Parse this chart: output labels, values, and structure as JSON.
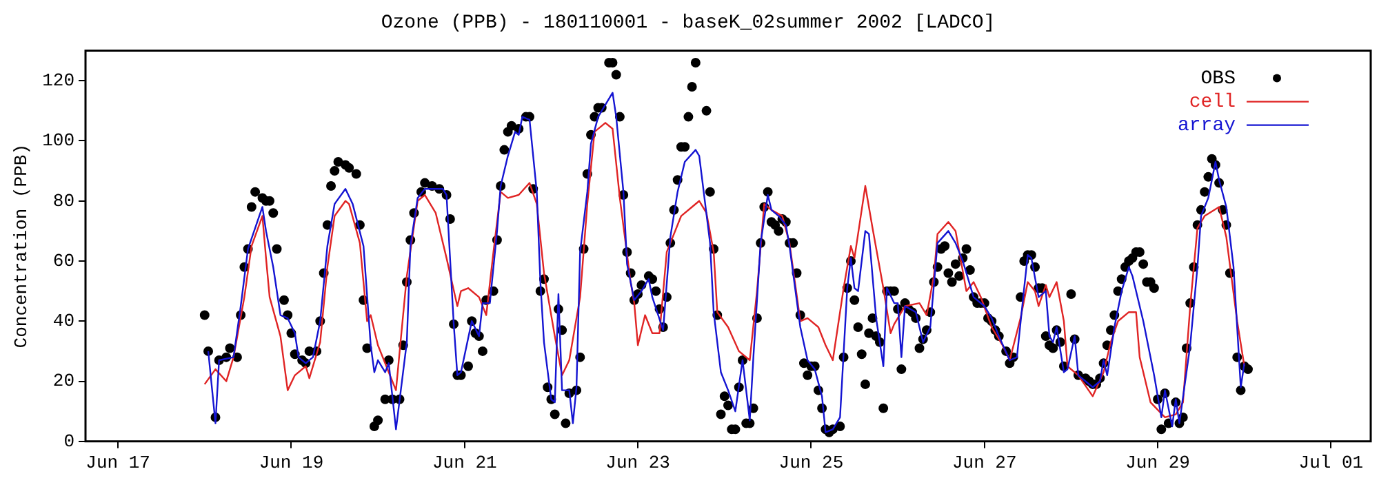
{
  "chart_data": {
    "type": "line",
    "title": "Ozone (PPB) - 180110001 - baseK_02summer 2002 [LADCO]",
    "ylabel": "Concentration (PPB)",
    "xlim": [
      "2002-06-16T15:00",
      "2002-07-01T11:00"
    ],
    "xticks": [
      {
        "value": "2002-06-17",
        "label": "Jun 17"
      },
      {
        "value": "2002-06-19",
        "label": "Jun 19"
      },
      {
        "value": "2002-06-21",
        "label": "Jun 21"
      },
      {
        "value": "2002-06-23",
        "label": "Jun 23"
      },
      {
        "value": "2002-06-25",
        "label": "Jun 25"
      },
      {
        "value": "2002-06-27",
        "label": "Jun 27"
      },
      {
        "value": "2002-06-29",
        "label": "Jun 29"
      },
      {
        "value": "2002-07-01",
        "label": "Jul 01"
      }
    ],
    "ylim": [
      0,
      130
    ],
    "yticks": [
      0,
      20,
      40,
      60,
      80,
      100,
      120
    ],
    "legend": "top right",
    "series": [
      {
        "name": "OBS",
        "type": "scatter",
        "marker": "circle",
        "color": "#000000",
        "x": [
          "2002-06-18T00:00",
          "2002-06-18T01:00",
          "2002-06-18T03:00",
          "2002-06-18T04:00",
          "2002-06-18T06:00",
          "2002-06-18T07:00",
          "2002-06-18T09:00",
          "2002-06-18T10:00",
          "2002-06-18T11:00",
          "2002-06-18T12:00",
          "2002-06-18T13:00",
          "2002-06-18T14:00",
          "2002-06-18T16:00",
          "2002-06-18T17:00",
          "2002-06-18T18:00",
          "2002-06-18T19:00",
          "2002-06-18T20:00",
          "2002-06-18T22:00",
          "2002-06-18T23:00",
          "2002-06-19T00:00",
          "2002-06-19T01:00",
          "2002-06-19T03:00",
          "2002-06-19T04:00",
          "2002-06-19T05:00",
          "2002-06-19T07:00",
          "2002-06-19T08:00",
          "2002-06-19T09:00",
          "2002-06-19T10:00",
          "2002-06-19T11:00",
          "2002-06-19T12:00",
          "2002-06-19T13:00",
          "2002-06-19T15:00",
          "2002-06-19T16:00",
          "2002-06-19T18:00",
          "2002-06-19T19:00",
          "2002-06-19T20:00",
          "2002-06-19T21:00",
          "2002-06-19T23:00",
          "2002-06-20T00:00",
          "2002-06-20T02:00",
          "2002-06-20T03:00",
          "2002-06-20T04:00",
          "2002-06-20T06:00",
          "2002-06-20T07:00",
          "2002-06-20T08:00",
          "2002-06-20T09:00",
          "2002-06-20T10:00",
          "2002-06-20T12:00",
          "2002-06-20T13:00",
          "2002-06-20T15:00",
          "2002-06-20T17:00",
          "2002-06-20T19:00",
          "2002-06-20T20:00",
          "2002-06-20T21:00",
          "2002-06-20T22:00",
          "2002-06-20T23:00",
          "2002-06-21T01:00",
          "2002-06-21T02:00",
          "2002-06-21T03:00",
          "2002-06-21T04:00",
          "2002-06-21T05:00",
          "2002-06-21T06:00",
          "2002-06-21T08:00",
          "2002-06-21T09:00",
          "2002-06-21T10:00",
          "2002-06-21T11:00",
          "2002-06-21T12:00",
          "2002-06-21T13:00",
          "2002-06-21T15:00",
          "2002-06-21T17:00",
          "2002-06-21T18:00",
          "2002-06-21T19:00",
          "2002-06-21T21:00",
          "2002-06-21T22:00",
          "2002-06-21T23:00",
          "2002-06-22T00:00",
          "2002-06-22T01:00",
          "2002-06-22T02:00",
          "2002-06-22T03:00",
          "2002-06-22T04:00",
          "2002-06-22T05:00",
          "2002-06-22T07:00",
          "2002-06-22T08:00",
          "2002-06-22T09:00",
          "2002-06-22T10:00",
          "2002-06-22T11:00",
          "2002-06-22T12:00",
          "2002-06-22T13:00",
          "2002-06-22T14:00",
          "2002-06-22T16:00",
          "2002-06-22T17:00",
          "2002-06-22T18:00",
          "2002-06-22T19:00",
          "2002-06-22T20:00",
          "2002-06-22T21:00",
          "2002-06-22T22:00",
          "2002-06-22T23:00",
          "2002-06-23T00:00",
          "2002-06-23T01:00",
          "2002-06-23T03:00",
          "2002-06-23T04:00",
          "2002-06-23T05:00",
          "2002-06-23T06:00",
          "2002-06-23T07:00",
          "2002-06-23T08:00",
          "2002-06-23T09:00",
          "2002-06-23T10:00",
          "2002-06-23T11:00",
          "2002-06-23T12:00",
          "2002-06-23T13:00",
          "2002-06-23T14:00",
          "2002-06-23T15:00",
          "2002-06-23T16:00",
          "2002-06-23T19:00",
          "2002-06-23T20:00",
          "2002-06-23T21:00",
          "2002-06-23T22:00",
          "2002-06-23T23:00",
          "2002-06-24T00:00",
          "2002-06-24T01:00",
          "2002-06-24T02:00",
          "2002-06-24T03:00",
          "2002-06-24T04:00",
          "2002-06-24T05:00",
          "2002-06-24T06:00",
          "2002-06-24T07:00",
          "2002-06-24T08:00",
          "2002-06-24T09:00",
          "2002-06-24T10:00",
          "2002-06-24T11:00",
          "2002-06-24T12:00",
          "2002-06-24T13:00",
          "2002-06-24T14:00",
          "2002-06-24T15:00",
          "2002-06-24T16:00",
          "2002-06-24T17:00",
          "2002-06-24T18:00",
          "2002-06-24T19:00",
          "2002-06-24T20:00",
          "2002-06-24T21:00",
          "2002-06-24T22:00",
          "2002-06-24T23:00",
          "2002-06-25T00:00",
          "2002-06-25T01:00",
          "2002-06-25T02:00",
          "2002-06-25T03:00",
          "2002-06-25T04:00",
          "2002-06-25T05:00",
          "2002-06-25T06:00",
          "2002-06-25T08:00",
          "2002-06-25T09:00",
          "2002-06-25T10:00",
          "2002-06-25T11:00",
          "2002-06-25T12:00",
          "2002-06-25T13:00",
          "2002-06-25T14:00",
          "2002-06-25T15:00",
          "2002-06-25T16:00",
          "2002-06-25T17:00",
          "2002-06-25T18:00",
          "2002-06-25T19:00",
          "2002-06-25T20:00",
          "2002-06-25T21:00",
          "2002-06-25T22:00",
          "2002-06-25T23:00",
          "2002-06-26T00:00",
          "2002-06-26T01:00",
          "2002-06-26T02:00",
          "2002-06-26T03:00",
          "2002-06-26T04:00",
          "2002-06-26T05:00",
          "2002-06-26T06:00",
          "2002-06-26T07:00",
          "2002-06-26T08:00",
          "2002-06-26T09:00",
          "2002-06-26T10:00",
          "2002-06-26T11:00",
          "2002-06-26T12:00",
          "2002-06-26T13:00",
          "2002-06-26T14:00",
          "2002-06-26T15:00",
          "2002-06-26T16:00",
          "2002-06-26T17:00",
          "2002-06-26T18:00",
          "2002-06-26T19:00",
          "2002-06-26T20:00",
          "2002-06-26T21:00",
          "2002-06-26T22:00",
          "2002-06-26T23:00",
          "2002-06-27T00:00",
          "2002-06-27T01:00",
          "2002-06-27T02:00",
          "2002-06-27T03:00",
          "2002-06-27T04:00",
          "2002-06-27T06:00",
          "2002-06-27T07:00",
          "2002-06-27T08:00",
          "2002-06-27T10:00",
          "2002-06-27T11:00",
          "2002-06-27T12:00",
          "2002-06-27T13:00",
          "2002-06-27T14:00",
          "2002-06-27T15:00",
          "2002-06-27T16:00",
          "2002-06-27T17:00",
          "2002-06-27T18:00",
          "2002-06-27T19:00",
          "2002-06-27T20:00",
          "2002-06-27T21:00",
          "2002-06-27T22:00",
          "2002-06-28T00:00",
          "2002-06-28T01:00",
          "2002-06-28T02:00",
          "2002-06-28T04:00",
          "2002-06-28T05:00",
          "2002-06-28T06:00",
          "2002-06-28T07:00",
          "2002-06-28T08:00",
          "2002-06-28T09:00",
          "2002-06-28T10:00",
          "2002-06-28T11:00",
          "2002-06-28T12:00",
          "2002-06-28T13:00",
          "2002-06-28T14:00",
          "2002-06-28T15:00",
          "2002-06-28T16:00",
          "2002-06-28T17:00",
          "2002-06-28T18:00",
          "2002-06-28T19:00",
          "2002-06-28T20:00",
          "2002-06-28T21:00",
          "2002-06-28T22:00",
          "2002-06-28T23:00",
          "2002-06-29T00:00",
          "2002-06-29T01:00",
          "2002-06-29T02:00",
          "2002-06-29T03:00",
          "2002-06-29T05:00",
          "2002-06-29T06:00",
          "2002-06-29T07:00",
          "2002-06-29T08:00",
          "2002-06-29T09:00",
          "2002-06-29T10:00",
          "2002-06-29T11:00",
          "2002-06-29T12:00",
          "2002-06-29T13:00",
          "2002-06-29T14:00",
          "2002-06-29T15:00",
          "2002-06-29T16:00",
          "2002-06-29T17:00",
          "2002-06-29T18:00",
          "2002-06-29T19:00",
          "2002-06-29T20:00",
          "2002-06-29T22:00",
          "2002-06-29T23:00",
          "2002-06-30T00:00",
          "2002-06-30T01:00"
        ],
        "values": [
          42,
          30,
          8,
          27,
          28,
          31,
          28,
          42,
          58,
          64,
          78,
          83,
          81,
          80,
          80,
          76,
          64,
          47,
          42,
          36,
          29,
          27,
          26,
          30,
          30,
          40,
          56,
          72,
          85,
          90,
          93,
          92,
          91,
          89,
          72,
          47,
          31,
          5,
          7,
          14,
          27,
          14,
          14,
          32,
          53,
          67,
          76,
          83,
          86,
          85,
          84,
          82,
          74,
          39,
          22,
          22,
          25,
          40,
          36,
          35,
          30,
          47,
          50,
          67,
          85,
          97,
          103,
          105,
          104,
          108,
          108,
          84,
          50,
          54,
          18,
          14,
          9,
          44,
          37,
          6,
          16,
          17,
          28,
          64,
          89,
          102,
          108,
          111,
          111,
          126,
          126,
          122,
          108,
          82,
          63,
          56,
          47,
          49,
          52,
          55,
          54,
          50,
          44,
          38,
          48,
          66,
          77,
          87,
          98,
          98,
          108,
          118,
          126,
          110,
          83,
          64,
          42,
          9,
          15,
          12,
          4,
          4,
          18,
          27,
          6,
          6,
          11,
          41,
          66,
          78,
          83,
          73,
          72,
          70,
          74,
          73,
          66,
          66,
          56,
          42,
          26,
          22,
          25,
          25,
          17,
          11,
          4,
          3,
          4,
          5,
          28,
          51,
          60,
          47,
          38,
          29,
          19,
          36,
          41,
          35,
          33,
          11,
          50,
          50,
          50,
          44,
          24,
          46,
          44,
          43,
          41,
          31,
          34,
          37,
          43,
          53,
          58,
          64,
          65,
          56,
          53,
          59,
          55,
          61,
          64,
          57,
          48,
          46,
          46,
          46,
          41,
          40,
          37,
          35,
          30,
          26,
          28,
          48,
          60,
          62,
          62,
          58,
          51,
          51,
          35,
          32,
          31,
          37,
          33,
          25,
          49,
          34,
          22,
          21,
          20,
          19,
          19,
          21,
          26,
          32,
          37,
          42,
          50,
          54,
          58,
          60,
          61,
          63,
          63,
          59,
          53,
          53,
          51,
          14,
          4,
          16,
          6,
          13,
          6,
          8,
          31,
          46,
          58,
          72,
          77,
          83,
          88,
          94,
          92,
          86,
          77,
          72,
          56,
          28,
          17,
          25,
          24
        ]
      },
      {
        "name": "cell",
        "color": "#e02424",
        "x": [
          "2002-06-18T00:00",
          "2002-06-18T03:00",
          "2002-06-18T06:00",
          "2002-06-18T08:00",
          "2002-06-18T11:00",
          "2002-06-18T13:00",
          "2002-06-18T16:00",
          "2002-06-18T17:00",
          "2002-06-18T18:00",
          "2002-06-18T21:00",
          "2002-06-18T23:00",
          "2002-06-19T01:00",
          "2002-06-19T04:00",
          "2002-06-19T05:00",
          "2002-06-19T08:00",
          "2002-06-19T10:00",
          "2002-06-19T12:00",
          "2002-06-19T15:00",
          "2002-06-19T16:00",
          "2002-06-19T19:00",
          "2002-06-19T21:00",
          "2002-06-19T22:00",
          "2002-06-20T00:00",
          "2002-06-20T03:00",
          "2002-06-20T05:00",
          "2002-06-20T08:00",
          "2002-06-20T11:00",
          "2002-06-20T13:00",
          "2002-06-20T16:00",
          "2002-06-20T19:00",
          "2002-06-20T22:00",
          "2002-06-20T23:00",
          "2002-06-21T01:00",
          "2002-06-21T04:00",
          "2002-06-21T06:00",
          "2002-06-21T08:00",
          "2002-06-21T10:00",
          "2002-06-21T12:00",
          "2002-06-21T15:00",
          "2002-06-21T18:00",
          "2002-06-21T20:00",
          "2002-06-21T22:00",
          "2002-06-22T01:00",
          "2002-06-22T03:00",
          "2002-06-22T05:00",
          "2002-06-22T08:00",
          "2002-06-22T10:00",
          "2002-06-22T12:00",
          "2002-06-22T15:00",
          "2002-06-22T17:00",
          "2002-06-22T19:00",
          "2002-06-22T22:00",
          "2002-06-22T23:00",
          "2002-06-23T00:00",
          "2002-06-23T02:00",
          "2002-06-23T04:00",
          "2002-06-23T06:00",
          "2002-06-23T08:00",
          "2002-06-23T12:00",
          "2002-06-23T15:00",
          "2002-06-23T17:00",
          "2002-06-23T19:00",
          "2002-06-23T21:00",
          "2002-06-23T22:00",
          "2002-06-24T01:00",
          "2002-06-24T04:00",
          "2002-06-24T07:00",
          "2002-06-24T09:00",
          "2002-06-24T11:00",
          "2002-06-24T13:00",
          "2002-06-24T16:00",
          "2002-06-24T18:00",
          "2002-06-24T21:00",
          "2002-06-24T23:00",
          "2002-06-25T02:00",
          "2002-06-25T04:00",
          "2002-06-25T06:00",
          "2002-06-25T09:00",
          "2002-06-25T11:00",
          "2002-06-25T12:00",
          "2002-06-25T15:00",
          "2002-06-25T17:00",
          "2002-06-25T20:00",
          "2002-06-25T22:00",
          "2002-06-25T23:00",
          "2002-06-26T02:00",
          "2002-06-26T06:00",
          "2002-06-26T08:00",
          "2002-06-26T10:00",
          "2002-06-26T11:00",
          "2002-06-26T14:00",
          "2002-06-26T16:00",
          "2002-06-26T19:00",
          "2002-06-26T21:00",
          "2002-06-26T23:00",
          "2002-06-27T02:00",
          "2002-06-27T05:00",
          "2002-06-27T07:00",
          "2002-06-27T10:00",
          "2002-06-27T12:00",
          "2002-06-27T14:00",
          "2002-06-27T15:00",
          "2002-06-27T17:00",
          "2002-06-27T18:00",
          "2002-06-27T20:00",
          "2002-06-27T22:00",
          "2002-06-27T23:00",
          "2002-06-28T02:00",
          "2002-06-28T06:00",
          "2002-06-28T09:00",
          "2002-06-28T11:00",
          "2002-06-28T13:00",
          "2002-06-28T16:00",
          "2002-06-28T18:00",
          "2002-06-28T19:00",
          "2002-06-28T22:00",
          "2002-06-29T02:00",
          "2002-06-29T05:00",
          "2002-06-29T07:00",
          "2002-06-29T09:00",
          "2002-06-29T11:00",
          "2002-06-29T13:00",
          "2002-06-29T17:00",
          "2002-06-29T19:00",
          "2002-06-29T22:00",
          "2002-06-30T00:00"
        ],
        "values": [
          19,
          24,
          20,
          28,
          48,
          65,
          75,
          61,
          48,
          35,
          17,
          22,
          25,
          21,
          33,
          58,
          75,
          80,
          79,
          66,
          40,
          42,
          32,
          23,
          17,
          55,
          80,
          82,
          76,
          61,
          45,
          50,
          51,
          48,
          42,
          63,
          83,
          81,
          82,
          86,
          79,
          56,
          35,
          22,
          27,
          48,
          79,
          103,
          106,
          104,
          81,
          53,
          46,
          32,
          42,
          36,
          36,
          63,
          75,
          78,
          80,
          76,
          63,
          43,
          38,
          30,
          27,
          50,
          79,
          77,
          75,
          66,
          40,
          41,
          38,
          32,
          27,
          51,
          65,
          61,
          85,
          71,
          51,
          36,
          39,
          45,
          46,
          42,
          55,
          69,
          73,
          70,
          50,
          53,
          48,
          38,
          32,
          27,
          41,
          53,
          50,
          45,
          52,
          48,
          53,
          40,
          25,
          22,
          15,
          23,
          33,
          40,
          43,
          43,
          28,
          13,
          8,
          9,
          13,
          45,
          71,
          75,
          78,
          68,
          40,
          25
        ]
      },
      {
        "name": "array",
        "color": "#1414d2",
        "x": [
          "2002-06-18T01:00",
          "2002-06-18T03:00",
          "2002-06-18T04:00",
          "2002-06-18T08:00",
          "2002-06-18T10:00",
          "2002-06-18T12:00",
          "2002-06-18T16:00",
          "2002-06-18T17:00",
          "2002-06-18T19:00",
          "2002-06-18T21:00",
          "2002-06-18T23:00",
          "2002-06-19T01:00",
          "2002-06-19T02:00",
          "2002-06-19T04:00",
          "2002-06-19T06:00",
          "2002-06-19T08:00",
          "2002-06-19T10:00",
          "2002-06-19T12:00",
          "2002-06-19T15:00",
          "2002-06-19T17:00",
          "2002-06-19T20:00",
          "2002-06-19T22:00",
          "2002-06-19T23:00",
          "2002-06-20T00:00",
          "2002-06-20T02:00",
          "2002-06-20T03:00",
          "2002-06-20T05:00",
          "2002-06-20T08:00",
          "2002-06-20T09:00",
          "2002-06-20T11:00",
          "2002-06-20T13:00",
          "2002-06-20T18:00",
          "2002-06-20T19:00",
          "2002-06-20T21:00",
          "2002-06-20T22:00",
          "2002-06-20T23:00",
          "2002-06-21T02:00",
          "2002-06-21T04:00",
          "2002-06-21T05:00",
          "2002-06-21T07:00",
          "2002-06-21T09:00",
          "2002-06-21T10:00",
          "2002-06-21T12:00",
          "2002-06-21T14:00",
          "2002-06-21T15:00",
          "2002-06-21T16:00",
          "2002-06-21T18:00",
          "2002-06-21T20:00",
          "2002-06-21T21:00",
          "2002-06-21T22:00",
          "2002-06-22T00:00",
          "2002-06-22T01:00",
          "2002-06-22T02:00",
          "2002-06-22T03:00",
          "2002-06-22T05:00",
          "2002-06-22T06:00",
          "2002-06-22T07:00",
          "2002-06-22T08:00",
          "2002-06-22T10:00",
          "2002-06-22T11:00",
          "2002-06-22T13:00",
          "2002-06-22T15:00",
          "2002-06-22T17:00",
          "2002-06-22T18:00",
          "2002-06-22T20:00",
          "2002-06-22T21:00",
          "2002-06-22T23:00",
          "2002-06-23T01:00",
          "2002-06-23T03:00",
          "2002-06-23T04:00",
          "2002-06-23T07:00",
          "2002-06-23T09:00",
          "2002-06-23T11:00",
          "2002-06-23T13:00",
          "2002-06-23T16:00",
          "2002-06-23T17:00",
          "2002-06-23T20:00",
          "2002-06-23T21:00",
          "2002-06-23T23:00",
          "2002-06-24T01:00",
          "2002-06-24T03:00",
          "2002-06-24T05:00",
          "2002-06-24T07:00",
          "2002-06-24T08:00",
          "2002-06-24T10:00",
          "2002-06-24T12:00",
          "2002-06-24T13:00",
          "2002-06-24T15:00",
          "2002-06-24T17:00",
          "2002-06-24T18:00",
          "2002-06-24T19:00",
          "2002-06-24T21:00",
          "2002-06-24T23:00",
          "2002-06-25T01:00",
          "2002-06-25T03:00",
          "2002-06-25T04:00",
          "2002-06-25T06:00",
          "2002-06-25T08:00",
          "2002-06-25T10:00",
          "2002-06-25T11:00",
          "2002-06-25T12:00",
          "2002-06-25T13:00",
          "2002-06-25T15:00",
          "2002-06-25T16:00",
          "2002-06-25T18:00",
          "2002-06-25T20:00",
          "2002-06-25T21:00",
          "2002-06-25T23:00",
          "2002-06-26T00:00",
          "2002-06-26T01:00",
          "2002-06-26T02:00",
          "2002-06-26T05:00",
          "2002-06-26T07:00",
          "2002-06-26T09:00",
          "2002-06-26T11:00",
          "2002-06-26T14:00",
          "2002-06-26T16:00",
          "2002-06-26T18:00",
          "2002-06-26T19:00",
          "2002-06-26T21:00",
          "2002-06-27T00:00",
          "2002-06-27T02:00",
          "2002-06-27T04:00",
          "2002-06-27T07:00",
          "2002-06-27T09:00",
          "2002-06-27T11:00",
          "2002-06-27T12:00",
          "2002-06-27T13:00",
          "2002-06-27T15:00",
          "2002-06-27T17:00",
          "2002-06-27T18:00",
          "2002-06-27T19:00",
          "2002-06-27T20:00",
          "2002-06-27T22:00",
          "2002-06-27T23:00",
          "2002-06-28T01:00",
          "2002-06-28T02:00",
          "2002-06-28T06:00",
          "2002-06-28T08:00",
          "2002-06-28T09:00",
          "2002-06-28T10:00",
          "2002-06-28T12:00",
          "2002-06-28T14:00",
          "2002-06-28T16:00",
          "2002-06-28T17:00",
          "2002-06-28T20:00",
          "2002-06-28T23:00",
          "2002-06-29T01:00",
          "2002-06-29T02:00",
          "2002-06-29T04:00",
          "2002-06-29T05:00",
          "2002-06-29T06:00",
          "2002-06-29T09:00",
          "2002-06-29T11:00",
          "2002-06-29T12:00",
          "2002-06-29T14:00",
          "2002-06-29T16:00",
          "2002-06-29T17:00",
          "2002-06-29T19:00",
          "2002-06-29T21:00",
          "2002-06-29T23:00",
          "2002-06-30T00:00"
        ],
        "values": [
          30,
          6,
          27,
          28,
          45,
          64,
          78,
          70,
          58,
          42,
          41,
          36,
          28,
          26,
          28,
          40,
          65,
          79,
          84,
          79,
          65,
          32,
          23,
          27,
          23,
          26,
          4,
          33,
          65,
          81,
          84,
          84,
          82,
          39,
          22,
          23,
          40,
          35,
          46,
          46,
          70,
          85,
          95,
          103,
          102,
          108,
          107,
          83,
          53,
          33,
          14,
          13,
          49,
          17,
          17,
          6,
          18,
          63,
          83,
          99,
          108,
          112,
          116,
          108,
          83,
          59,
          47,
          50,
          54,
          48,
          37,
          68,
          83,
          93,
          97,
          95,
          66,
          43,
          23,
          17,
          10,
          27,
          7,
          28,
          66,
          82,
          77,
          75,
          72,
          65,
          56,
          38,
          27,
          24,
          15,
          3,
          4,
          8,
          51,
          61,
          51,
          50,
          70,
          69,
          41,
          25,
          51,
          46,
          46,
          28,
          45,
          43,
          33,
          38,
          66,
          70,
          66,
          60,
          56,
          48,
          45,
          41,
          35,
          27,
          28,
          51,
          62,
          61,
          48,
          50,
          35,
          33,
          38,
          23,
          24,
          35,
          22,
          18,
          20,
          27,
          22,
          38,
          50,
          58,
          55,
          40,
          22,
          8,
          17,
          5,
          14,
          6,
          32,
          58,
          75,
          81,
          93,
          87,
          78,
          58,
          18,
          26
        ]
      }
    ]
  }
}
